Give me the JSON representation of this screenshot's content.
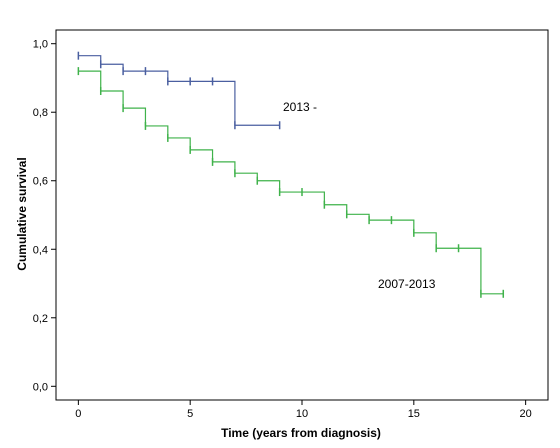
{
  "chart_data": {
    "type": "line",
    "title": "",
    "xlabel": "Time (years from diagnosis)",
    "ylabel": "Cumulative survival",
    "xlim": [
      -1,
      21
    ],
    "ylim": [
      -0.04,
      1.04
    ],
    "x_ticks": [
      0,
      5,
      10,
      15,
      20
    ],
    "y_ticks": [
      0.0,
      0.2,
      0.4,
      0.6,
      0.8,
      1.0
    ],
    "y_tick_labels": [
      "0,0",
      "0,2",
      "0,4",
      "0,6",
      "0,8",
      "1,0"
    ],
    "grid": false,
    "legend": "none",
    "series": [
      {
        "name": "2013 -",
        "color": "#4a5fa0",
        "steps": [
          {
            "x": 0,
            "y": 0.965
          },
          {
            "x": 1,
            "y": 0.94
          },
          {
            "x": 2,
            "y": 0.92
          },
          {
            "x": 4,
            "y": 0.89
          },
          {
            "x": 7,
            "y": 0.762
          }
        ],
        "end_x": 9,
        "censored": [
          {
            "x": 0,
            "y": 0.965
          },
          {
            "x": 1,
            "y": 0.94
          },
          {
            "x": 2,
            "y": 0.92
          },
          {
            "x": 3,
            "y": 0.92
          },
          {
            "x": 4,
            "y": 0.89
          },
          {
            "x": 5,
            "y": 0.89
          },
          {
            "x": 6,
            "y": 0.89
          },
          {
            "x": 7,
            "y": 0.762
          },
          {
            "x": 9,
            "y": 0.762
          }
        ]
      },
      {
        "name": "2007-2013",
        "color": "#3fb24a",
        "steps": [
          {
            "x": 0,
            "y": 0.92
          },
          {
            "x": 1,
            "y": 0.862
          },
          {
            "x": 2,
            "y": 0.812
          },
          {
            "x": 3,
            "y": 0.76
          },
          {
            "x": 4,
            "y": 0.725
          },
          {
            "x": 5,
            "y": 0.69
          },
          {
            "x": 6,
            "y": 0.655
          },
          {
            "x": 7,
            "y": 0.622
          },
          {
            "x": 8,
            "y": 0.6
          },
          {
            "x": 9,
            "y": 0.567
          },
          {
            "x": 11,
            "y": 0.53
          },
          {
            "x": 12,
            "y": 0.502
          },
          {
            "x": 13,
            "y": 0.485
          },
          {
            "x": 15,
            "y": 0.448
          },
          {
            "x": 16,
            "y": 0.403
          },
          {
            "x": 18,
            "y": 0.27
          }
        ],
        "end_x": 19,
        "censored": [
          {
            "x": 0,
            "y": 0.92
          },
          {
            "x": 1,
            "y": 0.862
          },
          {
            "x": 2,
            "y": 0.812
          },
          {
            "x": 3,
            "y": 0.76
          },
          {
            "x": 4,
            "y": 0.725
          },
          {
            "x": 5,
            "y": 0.69
          },
          {
            "x": 6,
            "y": 0.655
          },
          {
            "x": 7,
            "y": 0.622
          },
          {
            "x": 8,
            "y": 0.6
          },
          {
            "x": 9,
            "y": 0.567
          },
          {
            "x": 10,
            "y": 0.567
          },
          {
            "x": 11,
            "y": 0.53
          },
          {
            "x": 12,
            "y": 0.502
          },
          {
            "x": 13,
            "y": 0.485
          },
          {
            "x": 14,
            "y": 0.485
          },
          {
            "x": 15,
            "y": 0.448
          },
          {
            "x": 16,
            "y": 0.403
          },
          {
            "x": 17,
            "y": 0.403
          },
          {
            "x": 18,
            "y": 0.27
          },
          {
            "x": 19,
            "y": 0.27
          }
        ]
      }
    ]
  }
}
